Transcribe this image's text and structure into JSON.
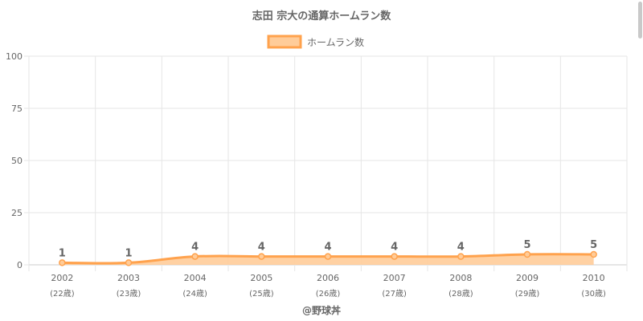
{
  "chart_data": {
    "type": "area",
    "title": "志田 宗大の通算ホームラン数",
    "legend": {
      "label": "ホームラン数",
      "position": "top-center"
    },
    "categories": [
      "2002",
      "2003",
      "2004",
      "2005",
      "2006",
      "2007",
      "2008",
      "2009",
      "2010"
    ],
    "category_sublabels": [
      "(22歳)",
      "(23歳)",
      "(24歳)",
      "(25歳)",
      "(26歳)",
      "(27歳)",
      "(28歳)",
      "(29歳)",
      "(30歳)"
    ],
    "series": [
      {
        "name": "ホームラン数",
        "values": [
          1,
          1,
          4,
          4,
          4,
          4,
          4,
          5,
          5
        ]
      }
    ],
    "data_labels": [
      "1",
      "1",
      "4",
      "4",
      "4",
      "4",
      "4",
      "5",
      "5"
    ],
    "ylim": [
      0,
      100
    ],
    "yticks": [
      "0",
      "25",
      "50",
      "75",
      "100"
    ],
    "grid": true,
    "colors": {
      "line": "#ffa24d",
      "fill": "#ffcc99",
      "grid": "#e6e6e6",
      "text": "#666666"
    },
    "footer": "@野球丼"
  }
}
